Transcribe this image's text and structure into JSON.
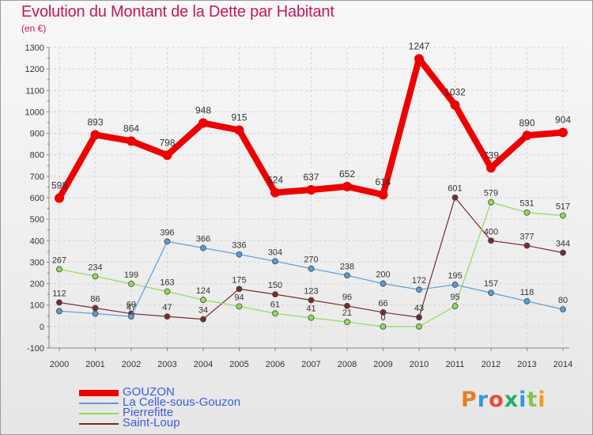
{
  "title": "Evolution du Montant de la Dette par Habitant",
  "unit": "(en €)",
  "logo": {
    "text": "Proxiti",
    "colors": [
      "#e67e22",
      "#3498db",
      "#e74c3c",
      "#27ae60",
      "#3498db",
      "#8bc34a",
      "#f39c12"
    ]
  },
  "chart_data": {
    "type": "line",
    "title": "Evolution du Montant de la Dette par Habitant",
    "ylabel": "(en €)",
    "xlabel": "",
    "ylim": [
      -100,
      1300
    ],
    "yticks": [
      -100,
      0,
      100,
      200,
      300,
      400,
      500,
      600,
      700,
      800,
      900,
      1000,
      1100,
      1200,
      1300
    ],
    "categories": [
      "2000",
      "2001",
      "2002",
      "2003",
      "2004",
      "2005",
      "2006",
      "2007",
      "2008",
      "2009",
      "2010",
      "2011",
      "2012",
      "2013",
      "2014"
    ],
    "grid": true,
    "legend": "bottom-left",
    "series": [
      {
        "name": "GOUZON",
        "color": "#ee0000",
        "width": 8,
        "values": [
          598,
          893,
          864,
          798,
          948,
          915,
          624,
          637,
          652,
          614,
          1247,
          1032,
          739,
          890,
          904
        ],
        "labels": [
          "598",
          "893",
          "864",
          "798",
          "948",
          "915",
          "624",
          "637",
          "652",
          "614",
          "1247",
          "1032",
          "739",
          "890",
          "904"
        ]
      },
      {
        "name": "La Celle-sous-Gouzon",
        "color": "#5b9bd5",
        "width": 1.2,
        "values": [
          72,
          60,
          47,
          396,
          366,
          336,
          304,
          270,
          238,
          200,
          172,
          195,
          157,
          118,
          80
        ],
        "labels": [
          "",
          "",
          "47",
          "396",
          "366",
          "336",
          "304",
          "270",
          "238",
          "200",
          "172",
          "195",
          "157",
          "118",
          "80"
        ]
      },
      {
        "name": "Pierrefitte",
        "color": "#8fdc5a",
        "width": 1.2,
        "values": [
          267,
          234,
          199,
          163,
          124,
          94,
          61,
          41,
          21,
          0,
          0,
          95,
          579,
          531,
          517
        ],
        "labels": [
          "267",
          "234",
          "199",
          "163",
          "124",
          "94",
          "61",
          "41",
          "21",
          "0",
          "0",
          "95",
          "579",
          "531",
          "517"
        ]
      },
      {
        "name": "Saint-Loup",
        "color": "#7b2b2b",
        "width": 1.2,
        "values": [
          112,
          86,
          60,
          47,
          34,
          175,
          150,
          123,
          96,
          66,
          43,
          601,
          400,
          377,
          344
        ],
        "labels": [
          "112",
          "86",
          "60",
          "47",
          "34",
          "175",
          "150",
          "123",
          "96",
          "66",
          "43",
          "601",
          "400",
          "377",
          "344"
        ]
      }
    ]
  }
}
